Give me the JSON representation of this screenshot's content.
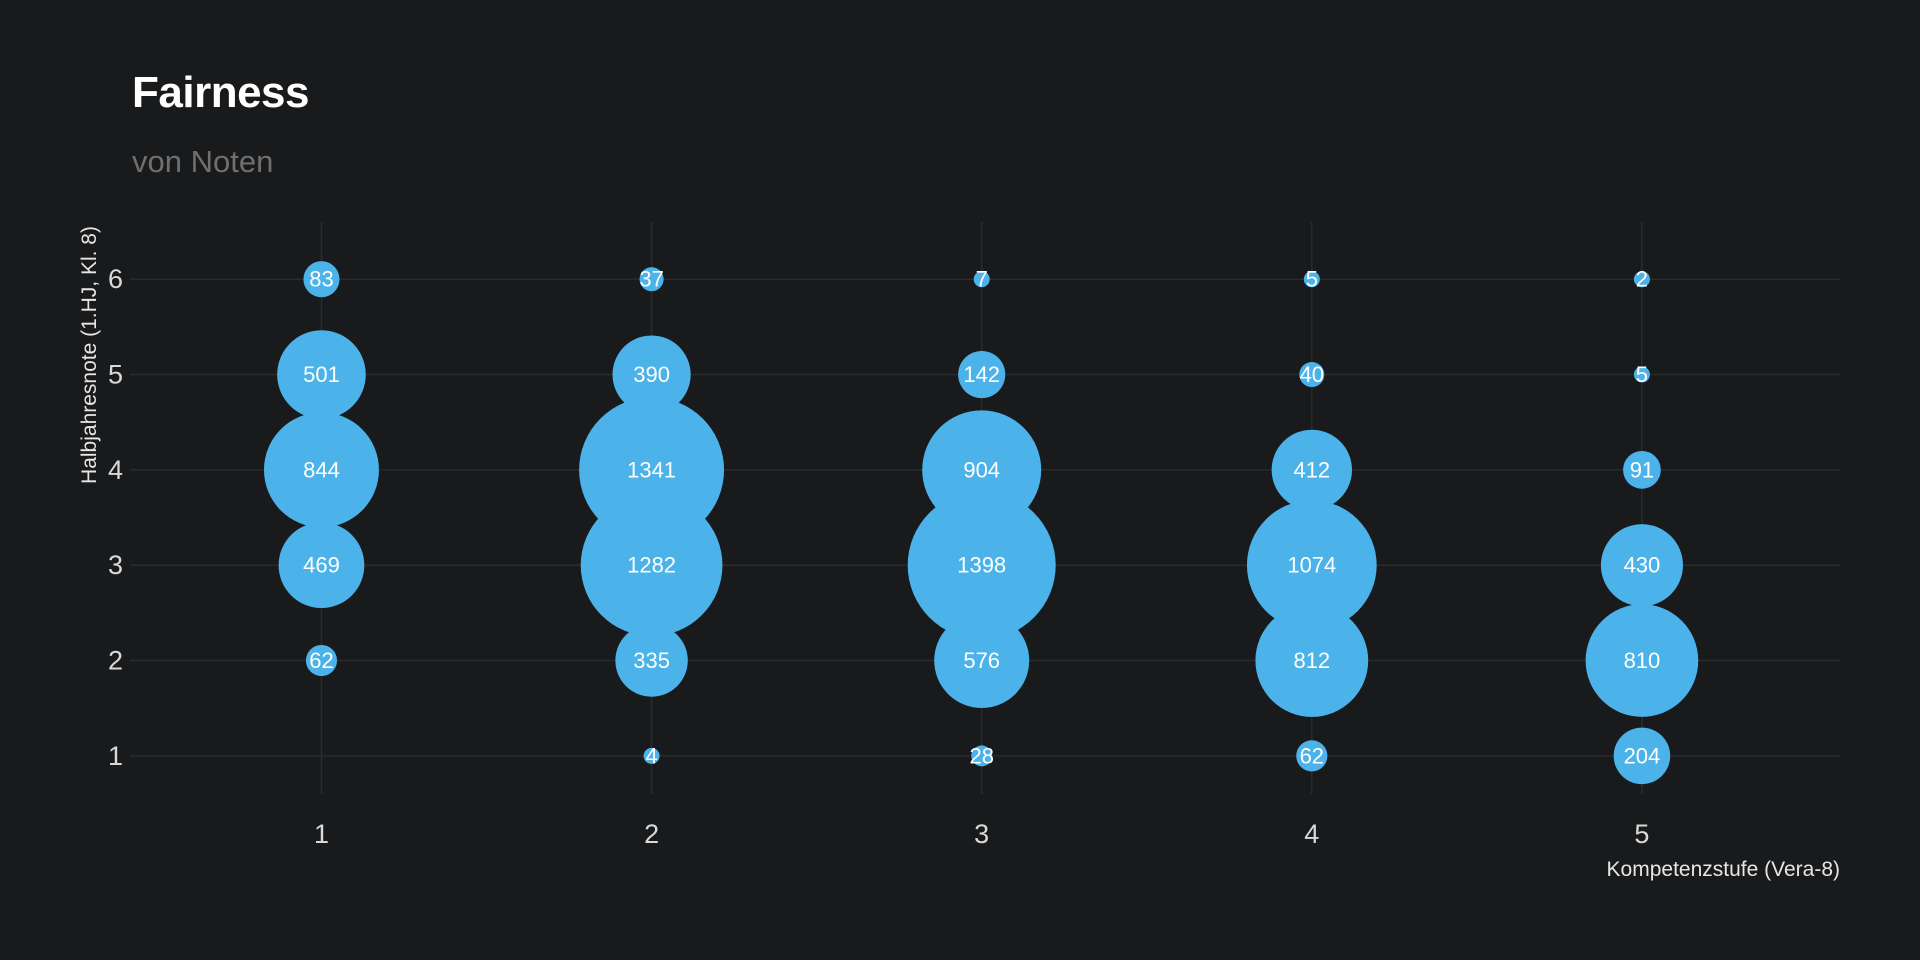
{
  "chart_data": {
    "type": "scatter",
    "title": "Fairness",
    "subtitle": "von Noten",
    "xlabel": "Kompetenzstufe (Vera-8)",
    "ylabel": "Halbjahresnote (1.HJ, Kl. 8)",
    "x_ticks": [
      "1",
      "2",
      "3",
      "4",
      "5"
    ],
    "y_ticks": [
      "1",
      "2",
      "3",
      "4",
      "5",
      "6"
    ],
    "xlim": [
      0.42,
      5.6
    ],
    "ylim": [
      0.6,
      6.6
    ],
    "grid": true,
    "bubble_color": "#4bb3ea",
    "background": "#191a1b",
    "points": [
      {
        "x": 1,
        "y": 6,
        "n": 83
      },
      {
        "x": 1,
        "y": 5,
        "n": 501
      },
      {
        "x": 1,
        "y": 4,
        "n": 844
      },
      {
        "x": 1,
        "y": 3,
        "n": 469
      },
      {
        "x": 1,
        "y": 2,
        "n": 62
      },
      {
        "x": 2,
        "y": 6,
        "n": 37
      },
      {
        "x": 2,
        "y": 5,
        "n": 390
      },
      {
        "x": 2,
        "y": 4,
        "n": 1341
      },
      {
        "x": 2,
        "y": 3,
        "n": 1282
      },
      {
        "x": 2,
        "y": 2,
        "n": 335
      },
      {
        "x": 2,
        "y": 1,
        "n": 4
      },
      {
        "x": 3,
        "y": 6,
        "n": 7
      },
      {
        "x": 3,
        "y": 5,
        "n": 142
      },
      {
        "x": 3,
        "y": 4,
        "n": 904
      },
      {
        "x": 3,
        "y": 3,
        "n": 1398
      },
      {
        "x": 3,
        "y": 2,
        "n": 576
      },
      {
        "x": 3,
        "y": 1,
        "n": 28
      },
      {
        "x": 4,
        "y": 6,
        "n": 5
      },
      {
        "x": 4,
        "y": 5,
        "n": 40
      },
      {
        "x": 4,
        "y": 4,
        "n": 412
      },
      {
        "x": 4,
        "y": 3,
        "n": 1074
      },
      {
        "x": 4,
        "y": 2,
        "n": 812
      },
      {
        "x": 4,
        "y": 1,
        "n": 62
      },
      {
        "x": 5,
        "y": 6,
        "n": 2
      },
      {
        "x": 5,
        "y": 5,
        "n": 5
      },
      {
        "x": 5,
        "y": 4,
        "n": 91
      },
      {
        "x": 5,
        "y": 3,
        "n": 430
      },
      {
        "x": 5,
        "y": 2,
        "n": 810
      },
      {
        "x": 5,
        "y": 1,
        "n": 204
      }
    ]
  }
}
